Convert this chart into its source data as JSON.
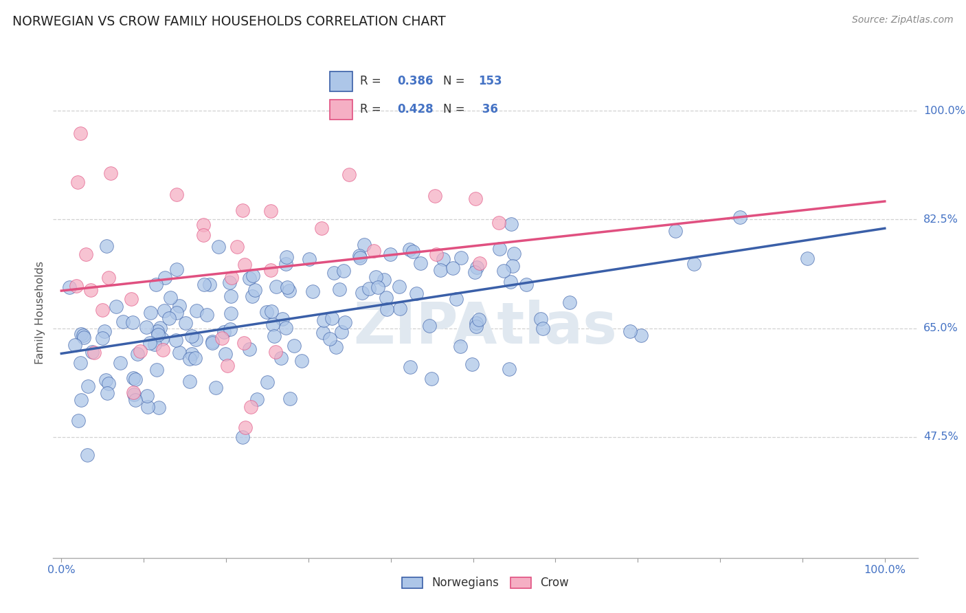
{
  "title": "NORWEGIAN VS CROW FAMILY HOUSEHOLDS CORRELATION CHART",
  "source": "Source: ZipAtlas.com",
  "ylabel": "Family Households",
  "norwegians_color": "#adc6e8",
  "crow_color": "#f5afc4",
  "trendline_norwegian_color": "#3a5fa8",
  "trendline_crow_color": "#e05080",
  "legend_text_color": "#4472c4",
  "R_norwegian": 0.386,
  "N_norwegian": 153,
  "R_crow": 0.428,
  "N_crow": 36,
  "background_color": "#ffffff",
  "grid_color": "#cccccc",
  "ytick_positions": [
    0.475,
    0.65,
    0.825,
    1.0
  ],
  "ytick_labels": [
    "47.5%",
    "65.0%",
    "82.5%",
    "100.0%"
  ],
  "xlim": [
    -0.01,
    1.04
  ],
  "ylim": [
    0.28,
    1.07
  ]
}
